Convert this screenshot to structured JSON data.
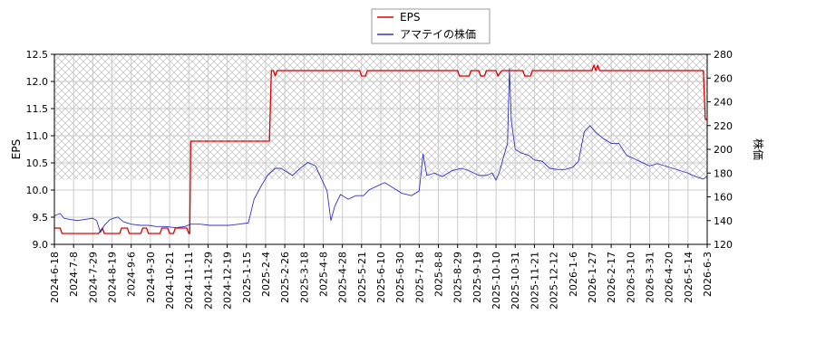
{
  "chart_data": {
    "type": "line",
    "title": "",
    "ylabel_left": "EPS",
    "ylabel_right": "株価",
    "ylim_left": [
      9.0,
      12.5
    ],
    "ylim_right": [
      120,
      280
    ],
    "yticks_left": [
      "9.0",
      "9.5",
      "10.0",
      "10.5",
      "11.0",
      "11.5",
      "12.0",
      "12.5"
    ],
    "yticks_right": [
      "120",
      "140",
      "160",
      "180",
      "200",
      "220",
      "240",
      "260",
      "280"
    ],
    "x_ticks": [
      "2024-6-18",
      "2024-7-8",
      "2024-7-29",
      "2024-8-19",
      "2024-9-6",
      "2024-9-30",
      "2024-10-21",
      "2024-11-11",
      "2024-11-29",
      "2024-12-19",
      "2025-1-15",
      "2025-2-4",
      "2025-2-26",
      "2025-3-18",
      "2025-4-8",
      "2025-4-28",
      "2025-5-21",
      "2025-6-10",
      "2025-6-30",
      "2025-7-18",
      "2025-8-8",
      "2025-8-29",
      "2025-9-19",
      "2025-10-10",
      "2025-10-31",
      "2025-11-21",
      "2025-12-12",
      "2026-1-6",
      "2026-1-27",
      "2026-2-17",
      "2026-3-10",
      "2026-3-31",
      "2026-4-20",
      "2026-5-14",
      "2026-6-3"
    ],
    "grid": true,
    "legend_position": "top-center",
    "series": [
      {
        "name": "EPS",
        "axis": "left",
        "color": "#dd0000",
        "points": [
          [
            0,
            9.3
          ],
          [
            0.3,
            9.3
          ],
          [
            0.4,
            9.2
          ],
          [
            2.3,
            9.2
          ],
          [
            2.5,
            9.3
          ],
          [
            2.6,
            9.2
          ],
          [
            3.4,
            9.2
          ],
          [
            3.5,
            9.3
          ],
          [
            3.8,
            9.3
          ],
          [
            3.9,
            9.2
          ],
          [
            4.5,
            9.2
          ],
          [
            4.6,
            9.3
          ],
          [
            4.8,
            9.3
          ],
          [
            4.9,
            9.2
          ],
          [
            5.5,
            9.2
          ],
          [
            5.6,
            9.3
          ],
          [
            5.9,
            9.3
          ],
          [
            6.0,
            9.2
          ],
          [
            6.2,
            9.2
          ],
          [
            6.3,
            9.3
          ],
          [
            6.9,
            9.3
          ],
          [
            7.0,
            9.2
          ],
          [
            7.05,
            9.2
          ],
          [
            7.1,
            10.9
          ],
          [
            11.2,
            10.9
          ],
          [
            11.3,
            12.2
          ],
          [
            11.4,
            12.2
          ],
          [
            11.5,
            12.1
          ],
          [
            11.6,
            12.2
          ],
          [
            15.9,
            12.2
          ],
          [
            16.0,
            12.1
          ],
          [
            16.2,
            12.1
          ],
          [
            16.3,
            12.2
          ],
          [
            21.0,
            12.2
          ],
          [
            21.1,
            12.1
          ],
          [
            21.6,
            12.1
          ],
          [
            21.7,
            12.2
          ],
          [
            22.1,
            12.2
          ],
          [
            22.2,
            12.1
          ],
          [
            22.4,
            12.1
          ],
          [
            22.5,
            12.2
          ],
          [
            23.0,
            12.2
          ],
          [
            23.1,
            12.1
          ],
          [
            23.3,
            12.2
          ],
          [
            24.4,
            12.2
          ],
          [
            24.5,
            12.1
          ],
          [
            24.8,
            12.1
          ],
          [
            24.9,
            12.2
          ],
          [
            28.0,
            12.2
          ],
          [
            28.1,
            12.3
          ],
          [
            28.2,
            12.2
          ],
          [
            28.3,
            12.3
          ],
          [
            28.4,
            12.2
          ],
          [
            33.8,
            12.2
          ],
          [
            33.9,
            11.3
          ],
          [
            35.0,
            11.3
          ]
        ]
      },
      {
        "name": "アマテイの株価",
        "axis": "right",
        "color": "#3333cc",
        "points": [
          [
            0,
            144
          ],
          [
            0.3,
            146
          ],
          [
            0.5,
            142
          ],
          [
            0.8,
            141
          ],
          [
            1.2,
            140
          ],
          [
            1.6,
            141
          ],
          [
            2.0,
            142
          ],
          [
            2.2,
            140
          ],
          [
            2.4,
            130
          ],
          [
            2.6,
            136
          ],
          [
            2.9,
            141
          ],
          [
            3.3,
            143
          ],
          [
            3.6,
            139
          ],
          [
            4.0,
            137
          ],
          [
            4.5,
            136
          ],
          [
            4.9,
            136
          ],
          [
            5.3,
            135
          ],
          [
            5.8,
            135
          ],
          [
            6.3,
            134
          ],
          [
            6.8,
            135
          ],
          [
            7.1,
            137
          ],
          [
            7.6,
            137
          ],
          [
            8.1,
            136
          ],
          [
            8.6,
            136
          ],
          [
            9.1,
            136
          ],
          [
            9.6,
            137
          ],
          [
            10.1,
            138
          ],
          [
            10.4,
            158
          ],
          [
            10.8,
            170
          ],
          [
            11.1,
            178
          ],
          [
            11.5,
            184
          ],
          [
            11.8,
            184
          ],
          [
            12.1,
            181
          ],
          [
            12.4,
            178
          ],
          [
            12.8,
            184
          ],
          [
            13.2,
            189
          ],
          [
            13.6,
            186
          ],
          [
            14.0,
            172
          ],
          [
            14.2,
            165
          ],
          [
            14.4,
            140
          ],
          [
            14.6,
            152
          ],
          [
            14.9,
            162
          ],
          [
            15.3,
            158
          ],
          [
            15.7,
            161
          ],
          [
            16.1,
            161
          ],
          [
            16.4,
            166
          ],
          [
            16.8,
            169
          ],
          [
            17.2,
            172
          ],
          [
            17.6,
            168
          ],
          [
            18.1,
            163
          ],
          [
            18.6,
            161
          ],
          [
            19.0,
            165
          ],
          [
            19.2,
            196
          ],
          [
            19.4,
            178
          ],
          [
            19.8,
            180
          ],
          [
            20.2,
            177
          ],
          [
            20.7,
            182
          ],
          [
            21.2,
            184
          ],
          [
            21.6,
            182
          ],
          [
            22.1,
            178
          ],
          [
            22.5,
            178
          ],
          [
            22.8,
            180
          ],
          [
            23.0,
            174
          ],
          [
            23.2,
            182
          ],
          [
            23.4,
            194
          ],
          [
            23.6,
            205
          ],
          [
            23.7,
            268
          ],
          [
            23.8,
            224
          ],
          [
            24.0,
            200
          ],
          [
            24.3,
            197
          ],
          [
            24.7,
            195
          ],
          [
            25.0,
            191
          ],
          [
            25.4,
            190
          ],
          [
            25.8,
            184
          ],
          [
            26.2,
            183
          ],
          [
            26.6,
            183
          ],
          [
            27.0,
            185
          ],
          [
            27.3,
            190
          ],
          [
            27.6,
            215
          ],
          [
            27.9,
            220
          ],
          [
            28.2,
            214
          ],
          [
            28.6,
            209
          ],
          [
            29.0,
            205
          ],
          [
            29.4,
            205
          ],
          [
            29.8,
            195
          ],
          [
            30.2,
            192
          ],
          [
            30.6,
            189
          ],
          [
            31.0,
            186
          ],
          [
            31.4,
            188
          ],
          [
            31.8,
            186
          ],
          [
            32.2,
            184
          ],
          [
            32.6,
            182
          ],
          [
            33.0,
            180
          ],
          [
            33.4,
            177
          ],
          [
            33.8,
            175
          ],
          [
            34.2,
            180
          ],
          [
            34.6,
            178
          ],
          [
            35.0,
            176
          ]
        ]
      }
    ]
  }
}
